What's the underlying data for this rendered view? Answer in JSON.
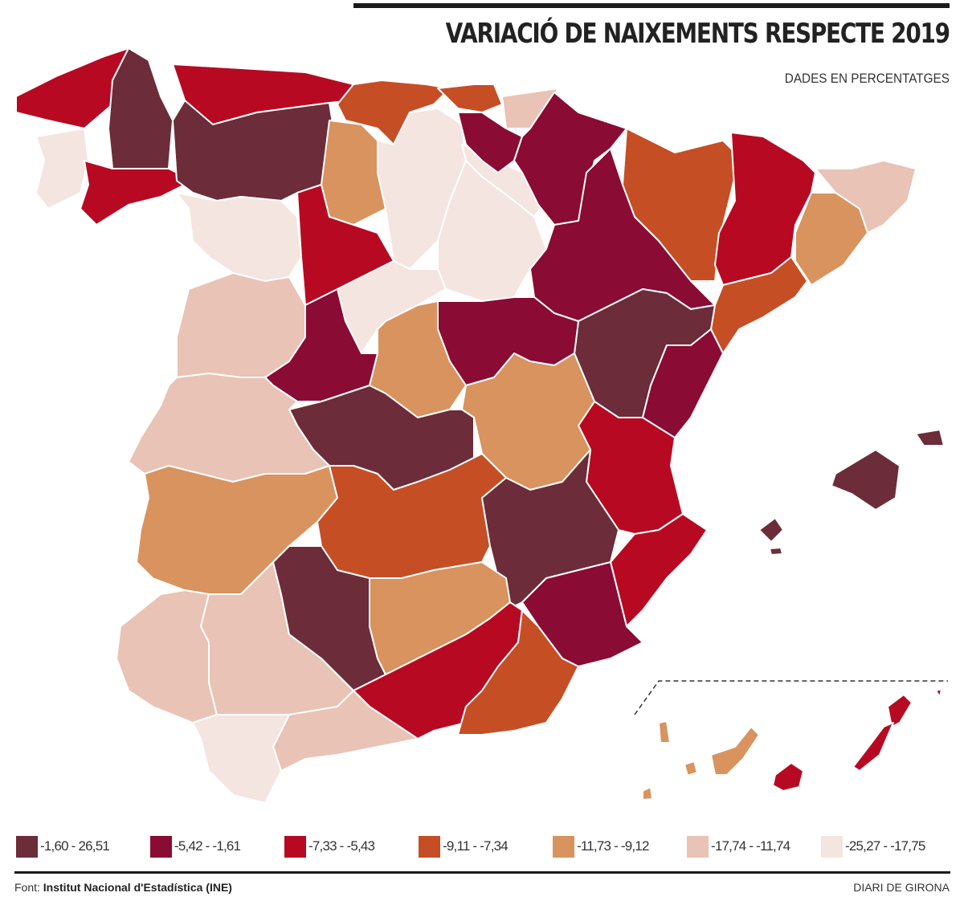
{
  "header": {
    "title": "VARIACIÓ DE NAIXEMENTS RESPECTE 2019",
    "subtitle": "DADES EN PERCENTATGES"
  },
  "legend": [
    {
      "label": "-1,60 - 26,51",
      "color": "#6c2c39"
    },
    {
      "label": "-5,42 - -1,61",
      "color": "#8a0b34"
    },
    {
      "label": "-7,33 - -5,43",
      "color": "#b70a22"
    },
    {
      "label": "-9,11 - -7,34",
      "color": "#c64e25"
    },
    {
      "label": "-11,73 - -9,12",
      "color": "#d8935e"
    },
    {
      "label": "-17,74 - -11,74",
      "color": "#e9c3b5"
    },
    {
      "label": "-25,27 - -17,75",
      "color": "#f4e5e0"
    }
  ],
  "footer": {
    "source_prefix": "Font:",
    "source": "Institut Nacional d'Estadística (INE)",
    "brand": "DIARI DE GIRONA"
  }
}
